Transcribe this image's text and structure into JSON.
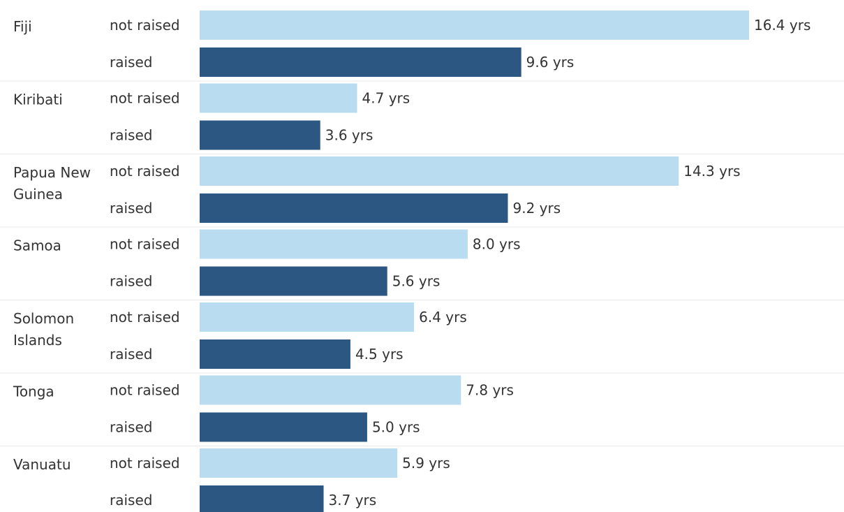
{
  "chart_data": {
    "type": "bar",
    "orientation": "horizontal",
    "unit_suffix": " yrs",
    "groups": [
      {
        "country_lines": [
          "Fiji"
        ],
        "bars": [
          {
            "status": "not raised",
            "value": 16.4,
            "label": "16.4 yrs"
          },
          {
            "status": "raised",
            "value": 9.6,
            "label": "9.6 yrs"
          }
        ]
      },
      {
        "country_lines": [
          "Kiribati"
        ],
        "bars": [
          {
            "status": "not raised",
            "value": 4.7,
            "label": "4.7 yrs"
          },
          {
            "status": "raised",
            "value": 3.6,
            "label": "3.6 yrs"
          }
        ]
      },
      {
        "country_lines": [
          "Papua New",
          "Guinea"
        ],
        "bars": [
          {
            "status": "not raised",
            "value": 14.3,
            "label": "14.3 yrs"
          },
          {
            "status": "raised",
            "value": 9.2,
            "label": "9.2 yrs"
          }
        ]
      },
      {
        "country_lines": [
          "Samoa"
        ],
        "bars": [
          {
            "status": "not raised",
            "value": 8.0,
            "label": "8.0 yrs"
          },
          {
            "status": "raised",
            "value": 5.6,
            "label": "5.6 yrs"
          }
        ]
      },
      {
        "country_lines": [
          "Solomon",
          "Islands"
        ],
        "bars": [
          {
            "status": "not raised",
            "value": 6.4,
            "label": "6.4 yrs"
          },
          {
            "status": "raised",
            "value": 4.5,
            "label": "4.5 yrs"
          }
        ]
      },
      {
        "country_lines": [
          "Tonga"
        ],
        "bars": [
          {
            "status": "not raised",
            "value": 7.8,
            "label": "7.8 yrs"
          },
          {
            "status": "raised",
            "value": 5.0,
            "label": "5.0 yrs"
          }
        ]
      },
      {
        "country_lines": [
          "Vanuatu"
        ],
        "bars": [
          {
            "status": "not raised",
            "value": 5.9,
            "label": "5.9 yrs"
          },
          {
            "status": "raised",
            "value": 3.7,
            "label": "3.7 yrs"
          }
        ]
      }
    ],
    "colors": {
      "not raised": "#b9dcf0",
      "raised": "#2b5782"
    },
    "separator_color": "#eaeaea",
    "grid": false,
    "legend": "none"
  }
}
